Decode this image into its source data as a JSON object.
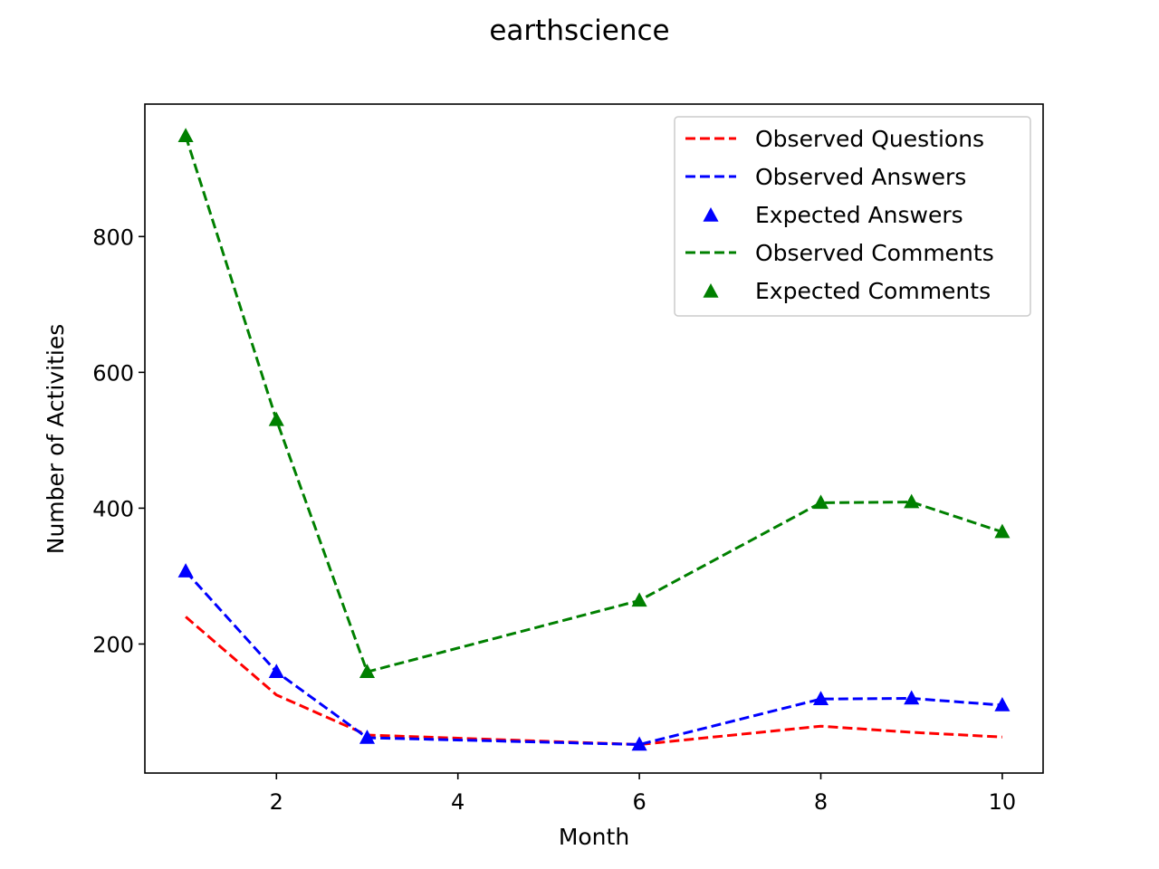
{
  "chart_data": {
    "type": "line",
    "title": "earthscience",
    "xlabel": "Month",
    "ylabel": "Number of Activities",
    "x": [
      1,
      2,
      3,
      6,
      8,
      9,
      10
    ],
    "xlim": [
      0.55,
      10.45
    ],
    "ylim": [
      10,
      995
    ],
    "xticks": [
      2,
      4,
      6,
      8,
      10
    ],
    "yticks": [
      200,
      400,
      600,
      800
    ],
    "grid": false,
    "legend_position": "upper-right",
    "series": [
      {
        "name": "Observed Questions",
        "style": "dashed-line",
        "color": "#ff0000",
        "values": [
          240,
          125,
          66,
          52,
          79,
          70,
          63
        ]
      },
      {
        "name": "Observed Answers",
        "style": "dashed-line",
        "color": "#0000ff",
        "values": [
          307,
          159,
          62,
          52,
          119,
          120,
          110
        ]
      },
      {
        "name": "Expected Answers",
        "style": "triangle-marker",
        "color": "#0000ff",
        "values": [
          307,
          159,
          62,
          52,
          119,
          120,
          110
        ]
      },
      {
        "name": "Observed Comments",
        "style": "dashed-line",
        "color": "#008000",
        "values": [
          948,
          530,
          159,
          264,
          408,
          409,
          365
        ]
      },
      {
        "name": "Expected Comments",
        "style": "triangle-marker",
        "color": "#008000",
        "values": [
          948,
          530,
          159,
          264,
          408,
          409,
          365
        ]
      }
    ]
  }
}
